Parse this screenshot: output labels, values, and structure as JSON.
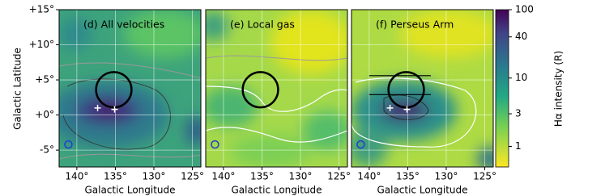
{
  "chart_data": {
    "type": "image",
    "xlabel": "Galactic Longitude",
    "ylabel": "Galactic Latitude",
    "xlim": [
      142.3,
      123.9
    ],
    "ylim": [
      -7.4,
      15
    ],
    "xticks": [
      {
        "value": 140,
        "label": "140°"
      },
      {
        "value": 135,
        "label": "135°"
      },
      {
        "value": 130,
        "label": "130°"
      },
      {
        "value": 125,
        "label": "125°"
      }
    ],
    "yticks": [
      {
        "value": -5,
        "label": "-5°"
      },
      {
        "value": 0,
        "label": "+0°"
      },
      {
        "value": 5,
        "label": "+5°"
      },
      {
        "value": 10,
        "label": "+10°"
      },
      {
        "value": 15,
        "label": "+15°"
      }
    ],
    "grid": true,
    "panels": [
      {
        "title": "(d) All velocities",
        "circle": [
          135.2,
          3.6,
          2.3
        ],
        "crosses": [
          [
            137.3,
            1.0
          ],
          [
            135.1,
            0.8
          ]
        ],
        "marker": [
          141.1,
          -4.2
        ]
      },
      {
        "title": "(e) Local gas",
        "circle": [
          135.2,
          3.6,
          2.3
        ],
        "marker": [
          141.1,
          -4.2
        ]
      },
      {
        "title": "(f) Perseus Arm",
        "circle": [
          135.2,
          3.6,
          2.3
        ],
        "crosses": [
          [
            137.3,
            1.0
          ],
          [
            135.1,
            0.8
          ]
        ],
        "marker": [
          141.1,
          -4.2
        ],
        "lines": [
          [
            140,
            132,
            5.6
          ],
          [
            140,
            132,
            2.9
          ]
        ]
      }
    ],
    "colorbar": {
      "label": "Hα intensity (R)",
      "scale": "log",
      "lim": [
        0.5,
        100
      ],
      "ticks": [
        1,
        3,
        10,
        40,
        100
      ]
    }
  }
}
